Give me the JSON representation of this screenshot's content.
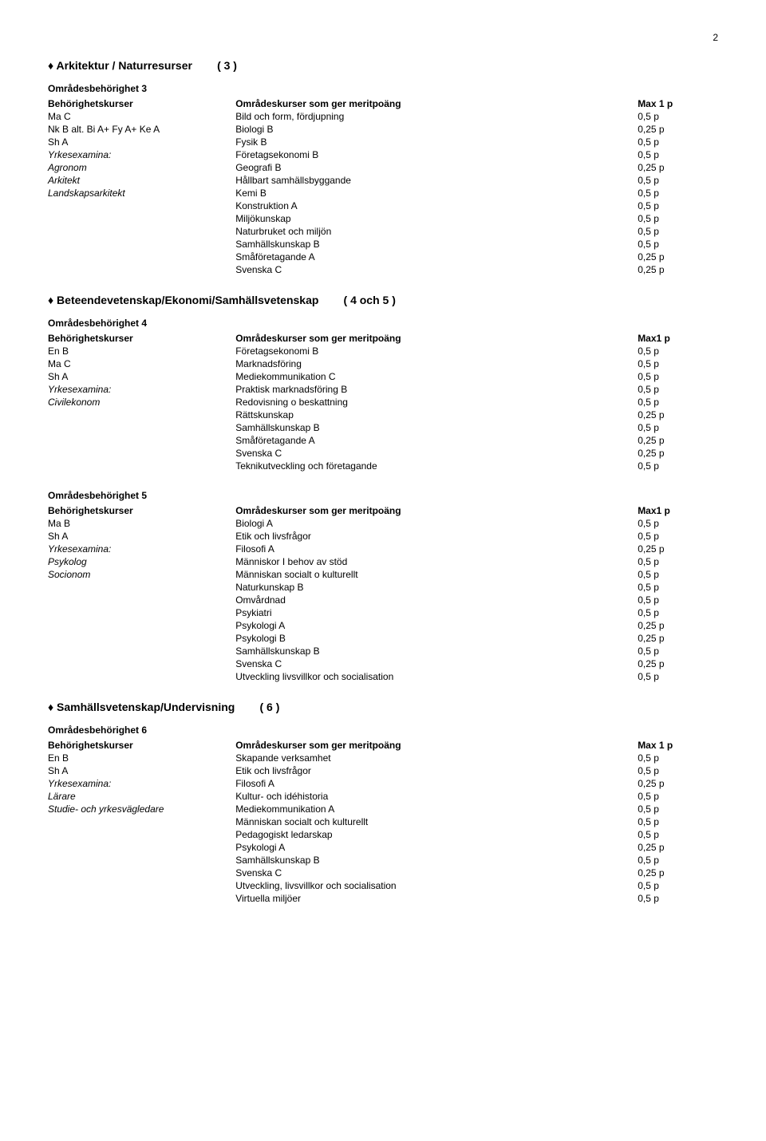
{
  "page_number": "2",
  "section1": {
    "title": "Arkitektur / Naturresurser",
    "paren": "( 3 )",
    "subhead": "Områdesbehörighet 3",
    "header_left": "Behörighetskurser",
    "header_mid": "Områdeskurser som ger meritpoäng",
    "header_right": "Max 1 p",
    "left": [
      {
        "t": "Ma C",
        "i": false
      },
      {
        "t": "Nk B alt. Bi A+ Fy A+ Ke A",
        "i": false
      },
      {
        "t": "Sh A",
        "i": false
      },
      {
        "t": "Yrkesexamina:",
        "i": true
      },
      {
        "t": "Agronom",
        "i": true
      },
      {
        "t": "Arkitekt",
        "i": true
      },
      {
        "t": "Landskapsarkitekt",
        "i": true
      }
    ],
    "rows": [
      {
        "m": "Bild och form, fördjupning",
        "r": "0,5 p"
      },
      {
        "m": "Biologi B",
        "r": "0,25 p"
      },
      {
        "m": "Fysik B",
        "r": "0,5 p"
      },
      {
        "m": "Företagsekonomi B",
        "r": "0,5 p"
      },
      {
        "m": "Geografi B",
        "r": "0,25 p"
      },
      {
        "m": "Hållbart samhällsbyggande",
        "r": "0,5 p"
      },
      {
        "m": "Kemi B",
        "r": "0,5 p"
      },
      {
        "m": "Konstruktion A",
        "r": "0,5 p"
      },
      {
        "m": "Miljökunskap",
        "r": "0,5 p"
      },
      {
        "m": "Naturbruket och miljön",
        "r": "0,5 p"
      },
      {
        "m": "Samhällskunskap B",
        "r": "0,5 p"
      },
      {
        "m": "Småföretagande A",
        "r": "0,25 p"
      },
      {
        "m": "Svenska C",
        "r": "0,25 p"
      }
    ]
  },
  "section2": {
    "title": "Beteendevetenskap/Ekonomi/Samhällsvetenskap",
    "paren": "( 4 och 5 )",
    "block4": {
      "subhead": "Områdesbehörighet 4",
      "header_left": "Behörighetskurser",
      "header_mid": "Områdeskurser som ger meritpoäng",
      "header_right": "Max1 p",
      "left": [
        {
          "t": "En B",
          "i": false
        },
        {
          "t": "Ma C",
          "i": false
        },
        {
          "t": "Sh A",
          "i": false
        },
        {
          "t": "Yrkesexamina:",
          "i": true
        },
        {
          "t": "Civilekonom",
          "i": true
        }
      ],
      "rows": [
        {
          "m": "Företagsekonomi B",
          "r": "0,5 p"
        },
        {
          "m": "Marknadsföring",
          "r": "0,5 p"
        },
        {
          "m": "Mediekommunikation C",
          "r": "0,5 p"
        },
        {
          "m": "Praktisk marknadsföring B",
          "r": "0,5 p"
        },
        {
          "m": "Redovisning o beskattning",
          "r": "0,5 p"
        },
        {
          "m": "Rättskunskap",
          "r": "0,25 p"
        },
        {
          "m": "Samhällskunskap B",
          "r": "0,5 p"
        },
        {
          "m": "Småföretagande A",
          "r": "0,25 p"
        },
        {
          "m": "Svenska C",
          "r": "0,25 p"
        },
        {
          "m": "Teknikutveckling och företagande",
          "r": "0,5 p"
        }
      ]
    },
    "block5": {
      "subhead": "Områdesbehörighet 5",
      "header_left": "Behörighetskurser",
      "header_mid": "Områdeskurser som ger meritpoäng",
      "header_right": "Max1 p",
      "left": [
        {
          "t": "Ma B",
          "i": false
        },
        {
          "t": "Sh A",
          "i": false
        },
        {
          "t": "Yrkesexamina:",
          "i": true
        },
        {
          "t": "Psykolog",
          "i": true
        },
        {
          "t": "Socionom",
          "i": true
        }
      ],
      "rows": [
        {
          "m": "Biologi A",
          "r": "0,5 p"
        },
        {
          "m": "Etik och livsfrågor",
          "r": "0,5 p"
        },
        {
          "m": "Filosofi A",
          "r": "0,25 p"
        },
        {
          "m": "Människor I behov av stöd",
          "r": "0,5 p"
        },
        {
          "m": "Människan socialt o kulturellt",
          "r": "0,5 p"
        },
        {
          "m": "Naturkunskap B",
          "r": "0,5 p"
        },
        {
          "m": "Omvårdnad",
          "r": "0,5 p"
        },
        {
          "m": "Psykiatri",
          "r": "0,5 p"
        },
        {
          "m": "Psykologi A",
          "r": "0,25 p"
        },
        {
          "m": "Psykologi B",
          "r": "0,25 p"
        },
        {
          "m": "Samhällskunskap B",
          "r": "0,5 p"
        },
        {
          "m": "Svenska C",
          "r": "0,25 p"
        },
        {
          "m": "Utveckling livsvillkor och socialisation",
          "r": "0,5 p"
        }
      ]
    }
  },
  "section3": {
    "title": "Samhällsvetenskap/Undervisning",
    "paren": "( 6 )",
    "subhead": "Områdesbehörighet 6",
    "header_left": "Behörighetskurser",
    "header_mid": "Områdeskurser som ger meritpoäng",
    "header_right": "Max 1 p",
    "left": [
      {
        "t": "En B",
        "i": false
      },
      {
        "t": "Sh A",
        "i": false
      },
      {
        "t": "Yrkesexamina:",
        "i": true
      },
      {
        "t": "Lärare",
        "i": true
      },
      {
        "t": "Studie- och yrkesvägledare",
        "i": true
      }
    ],
    "rows": [
      {
        "m": "Skapande verksamhet",
        "r": "0,5 p"
      },
      {
        "m": "Etik och livsfrågor",
        "r": "0,5 p"
      },
      {
        "m": "Filosofi A",
        "r": "0,25 p"
      },
      {
        "m": "Kultur- och idéhistoria",
        "r": "0,5 p"
      },
      {
        "m": "Mediekommunikation A",
        "r": "0,5 p"
      },
      {
        "m": "Människan socialt och kulturellt",
        "r": "0,5 p"
      },
      {
        "m": "Pedagogiskt ledarskap",
        "r": "0,5 p"
      },
      {
        "m": "Psykologi A",
        "r": "0,25 p"
      },
      {
        "m": "Samhällskunskap B",
        "r": "0,5 p"
      },
      {
        "m": "Svenska C",
        "r": "0,25 p"
      },
      {
        "m": "Utveckling, livsvillkor och socialisation",
        "r": "0,5 p"
      },
      {
        "m": "Virtuella miljöer",
        "r": "0,5 p"
      }
    ]
  }
}
